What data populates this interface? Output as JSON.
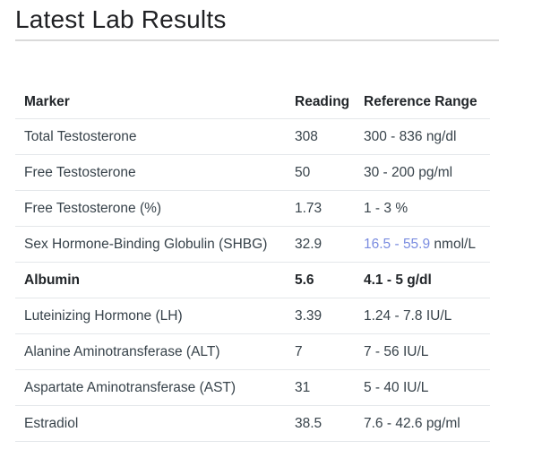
{
  "title": "Latest Lab Results",
  "table": {
    "headers": {
      "marker": "Marker",
      "reading": "Reading",
      "range": "Reference Range"
    },
    "rows": [
      {
        "marker": "Total Testosterone",
        "reading": "308",
        "range_value": "300 - 836",
        "range_unit": "ng/dl",
        "bold": false,
        "range_highlighted": false
      },
      {
        "marker": "Free Testosterone",
        "reading": "50",
        "range_value": "30 - 200",
        "range_unit": "pg/ml",
        "bold": false,
        "range_highlighted": false
      },
      {
        "marker": "Free Testosterone (%)",
        "reading": "1.73",
        "range_value": "1 - 3",
        "range_unit": "%",
        "bold": false,
        "range_highlighted": false
      },
      {
        "marker": "Sex Hormone-Binding Globulin (SHBG)",
        "reading": "32.9",
        "range_value": "16.5 - 55.9",
        "range_unit": "nmol/L",
        "bold": false,
        "range_highlighted": true
      },
      {
        "marker": "Albumin",
        "reading": "5.6",
        "range_value": "4.1 - 5",
        "range_unit": "g/dl",
        "bold": true,
        "range_highlighted": false
      },
      {
        "marker": "Luteinizing Hormone (LH)",
        "reading": "3.39",
        "range_value": "1.24 - 7.8",
        "range_unit": "IU/L",
        "bold": false,
        "range_highlighted": false
      },
      {
        "marker": "Alanine Aminotransferase (ALT)",
        "reading": "7",
        "range_value": "7 - 56",
        "range_unit": "IU/L",
        "bold": false,
        "range_highlighted": false
      },
      {
        "marker": "Aspartate Aminotransferase (AST)",
        "reading": "31",
        "range_value": "5 - 40",
        "range_unit": "IU/L",
        "bold": false,
        "range_highlighted": false
      },
      {
        "marker": "Estradiol",
        "reading": "38.5",
        "range_value": "7.6 - 42.6",
        "range_unit": "pg/ml",
        "bold": false,
        "range_highlighted": false
      }
    ]
  },
  "colors": {
    "range_accent": "#7a8ce0",
    "body_text": "#37424a",
    "heading_text": "#212529",
    "divider": "#e4e7ea"
  }
}
